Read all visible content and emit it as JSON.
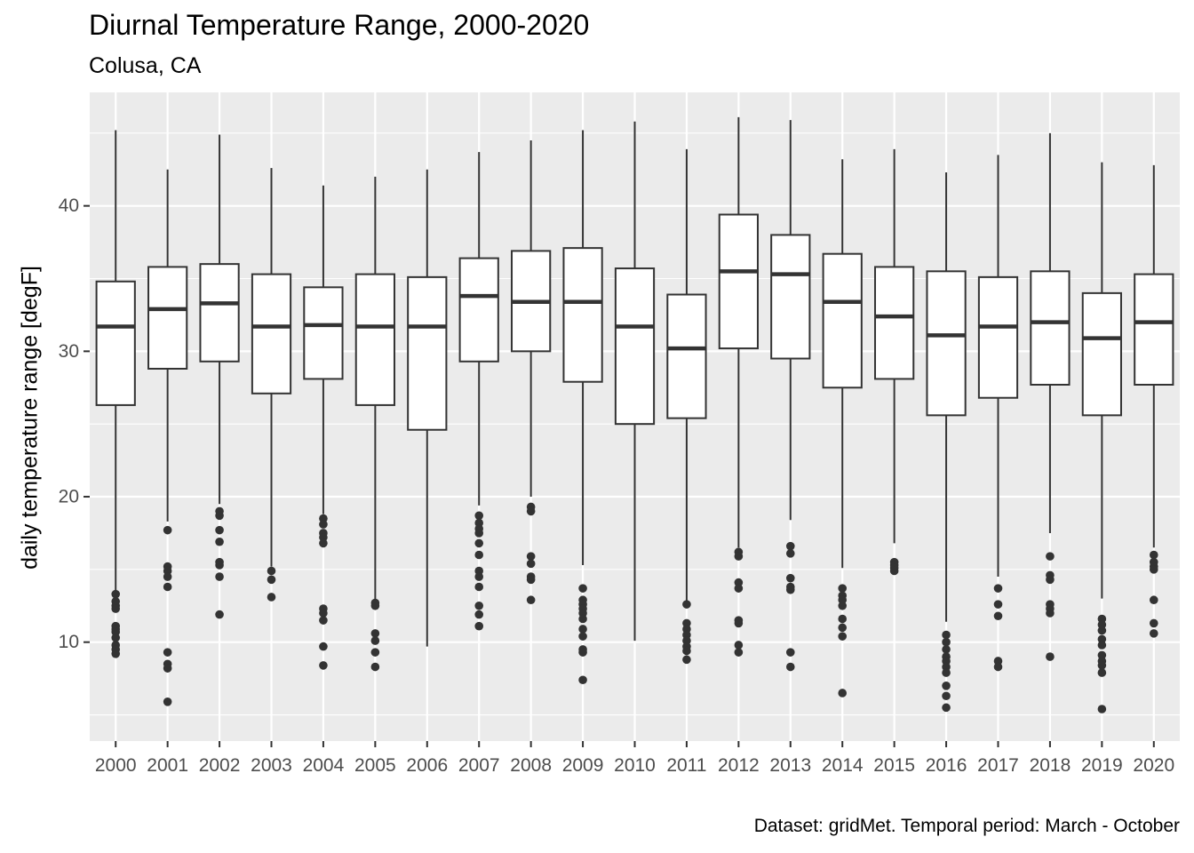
{
  "chart_data": {
    "type": "boxplot",
    "title": "Diurnal Temperature Range, 2000-2020",
    "subtitle": "Colusa, CA",
    "caption": "Dataset: gridMet. Temporal period: March - October",
    "xlabel": "",
    "ylabel": "daily temperature range [degF]",
    "ylim": [
      3.2,
      47.8
    ],
    "yticks": [
      10,
      20,
      30,
      40
    ],
    "grid": true,
    "colors": {
      "panel": "#EBEBEB",
      "grid": "#FFFFFF",
      "box_fill": "#FFFFFF",
      "box_line": "#333333",
      "outlier": "#333333",
      "tick_text": "#4D4D4D"
    },
    "categories": [
      "2000",
      "2001",
      "2002",
      "2003",
      "2004",
      "2005",
      "2006",
      "2007",
      "2008",
      "2009",
      "2010",
      "2011",
      "2012",
      "2013",
      "2014",
      "2015",
      "2016",
      "2017",
      "2018",
      "2019",
      "2020"
    ],
    "boxes": [
      {
        "q1": 26.3,
        "median": 31.7,
        "q3": 34.8,
        "whisker_low": 13.5,
        "whisker_high": 45.2,
        "outliers": [
          13.3,
          12.8,
          12.5,
          12.3,
          11.1,
          10.9,
          10.7,
          10.3,
          9.8,
          9.5,
          9.2
        ]
      },
      {
        "q1": 28.8,
        "median": 32.9,
        "q3": 35.8,
        "whisker_low": 18.3,
        "whisker_high": 42.5,
        "outliers": [
          17.7,
          15.2,
          14.9,
          14.5,
          13.8,
          9.3,
          8.5,
          8.2,
          5.9
        ]
      },
      {
        "q1": 29.3,
        "median": 33.3,
        "q3": 36.0,
        "whisker_low": 19.5,
        "whisker_high": 44.9,
        "outliers": [
          19.0,
          18.7,
          17.7,
          16.9,
          15.5,
          15.3,
          14.5,
          11.9
        ]
      },
      {
        "q1": 27.1,
        "median": 31.7,
        "q3": 35.3,
        "whisker_low": 15.2,
        "whisker_high": 42.6,
        "outliers": [
          14.9,
          14.3,
          13.1
        ]
      },
      {
        "q1": 28.1,
        "median": 31.8,
        "q3": 34.4,
        "whisker_low": 18.8,
        "whisker_high": 41.4,
        "outliers": [
          18.5,
          18.1,
          17.5,
          17.2,
          16.8,
          12.3,
          12.0,
          11.5,
          9.7,
          8.4
        ]
      },
      {
        "q1": 26.3,
        "median": 31.7,
        "q3": 35.3,
        "whisker_low": 12.9,
        "whisker_high": 42.0,
        "outliers": [
          12.7,
          12.5,
          10.6,
          10.1,
          9.3,
          8.3
        ]
      },
      {
        "q1": 24.6,
        "median": 31.7,
        "q3": 35.1,
        "whisker_low": 9.7,
        "whisker_high": 42.5,
        "outliers": []
      },
      {
        "q1": 29.3,
        "median": 33.8,
        "q3": 36.4,
        "whisker_low": 19.4,
        "whisker_high": 43.7,
        "outliers": [
          18.7,
          18.2,
          17.8,
          17.5,
          16.8,
          16.0,
          14.9,
          14.5,
          13.8,
          12.5,
          11.9,
          11.1
        ]
      },
      {
        "q1": 30.0,
        "median": 33.4,
        "q3": 36.9,
        "whisker_low": 20.0,
        "whisker_high": 44.5,
        "outliers": [
          19.3,
          19.0,
          15.9,
          15.4,
          14.5,
          14.3,
          12.9
        ]
      },
      {
        "q1": 27.9,
        "median": 33.4,
        "q3": 37.1,
        "whisker_low": 15.3,
        "whisker_high": 45.2,
        "outliers": [
          13.7,
          12.9,
          12.6,
          12.3,
          12.0,
          11.6,
          10.9,
          10.4,
          9.5,
          9.3,
          7.4
        ]
      },
      {
        "q1": 25.0,
        "median": 31.7,
        "q3": 35.7,
        "whisker_low": 10.1,
        "whisker_high": 45.8,
        "outliers": []
      },
      {
        "q1": 25.4,
        "median": 30.2,
        "q3": 33.9,
        "whisker_low": 12.8,
        "whisker_high": 43.9,
        "outliers": [
          12.6,
          11.3,
          10.9,
          10.5,
          10.1,
          9.7,
          9.4,
          8.8
        ]
      },
      {
        "q1": 30.2,
        "median": 35.5,
        "q3": 39.4,
        "whisker_low": 16.5,
        "whisker_high": 46.1,
        "outliers": [
          16.2,
          15.9,
          14.1,
          13.7,
          11.5,
          11.3,
          9.8,
          9.3
        ]
      },
      {
        "q1": 29.5,
        "median": 35.3,
        "q3": 38.0,
        "whisker_low": 18.4,
        "whisker_high": 45.9,
        "outliers": [
          16.6,
          16.1,
          14.4,
          13.8,
          13.6,
          9.3,
          8.3
        ]
      },
      {
        "q1": 27.5,
        "median": 33.4,
        "q3": 36.7,
        "whisker_low": 15.1,
        "whisker_high": 43.2,
        "outliers": [
          13.7,
          13.2,
          12.9,
          12.5,
          11.6,
          11.0,
          10.4,
          6.5
        ]
      },
      {
        "q1": 28.1,
        "median": 32.4,
        "q3": 35.8,
        "whisker_low": 16.8,
        "whisker_high": 43.9,
        "outliers": [
          15.5,
          15.3,
          15.1,
          14.9
        ]
      },
      {
        "q1": 25.6,
        "median": 31.1,
        "q3": 35.5,
        "whisker_low": 11.4,
        "whisker_high": 42.3,
        "outliers": [
          10.5,
          10.0,
          9.5,
          9.0,
          8.7,
          8.3,
          7.9,
          7.0,
          6.3,
          5.5
        ]
      },
      {
        "q1": 26.8,
        "median": 31.7,
        "q3": 35.1,
        "whisker_low": 14.5,
        "whisker_high": 43.5,
        "outliers": [
          13.7,
          12.6,
          11.8,
          8.7,
          8.3
        ]
      },
      {
        "q1": 27.7,
        "median": 32.0,
        "q3": 35.5,
        "whisker_low": 17.5,
        "whisker_high": 45.0,
        "outliers": [
          15.9,
          14.6,
          14.3,
          12.6,
          12.3,
          12.0,
          9.0
        ]
      },
      {
        "q1": 25.6,
        "median": 30.9,
        "q3": 34.0,
        "whisker_low": 13.0,
        "whisker_high": 43.0,
        "outliers": [
          11.6,
          11.2,
          10.8,
          10.2,
          9.8,
          9.1,
          8.7,
          8.4,
          7.9,
          5.4
        ]
      },
      {
        "q1": 27.7,
        "median": 32.0,
        "q3": 35.3,
        "whisker_low": 16.5,
        "whisker_high": 42.8,
        "outliers": [
          16.0,
          15.5,
          15.2,
          15.0,
          12.9,
          11.3,
          10.6
        ]
      }
    ]
  }
}
